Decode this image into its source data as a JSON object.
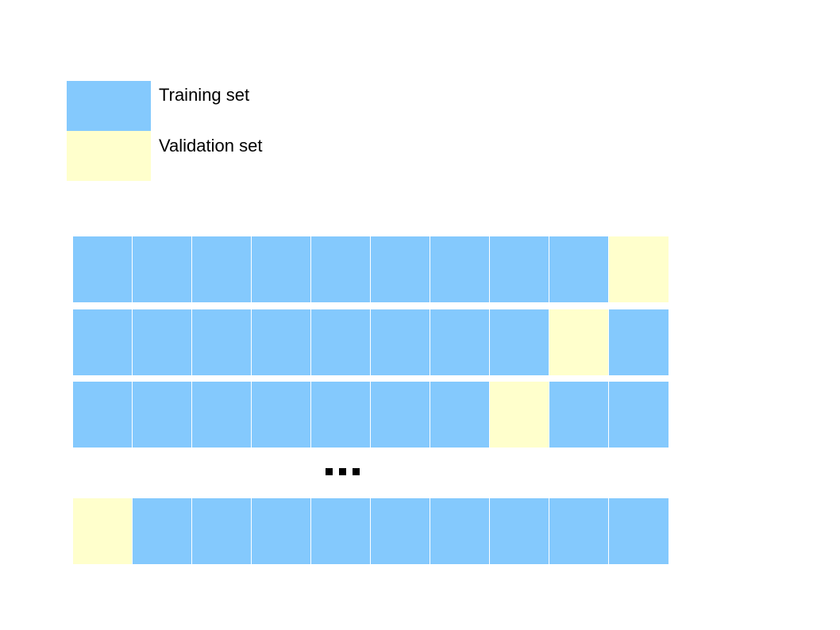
{
  "legend": {
    "training": {
      "label": "Training set",
      "color": "#84C9FD"
    },
    "validation": {
      "label": "Validation set",
      "color": "#FFFFCC"
    }
  },
  "folds": [
    {
      "cells": [
        "training",
        "training",
        "training",
        "training",
        "training",
        "training",
        "training",
        "training",
        "training",
        "validation"
      ]
    },
    {
      "cells": [
        "training",
        "training",
        "training",
        "training",
        "training",
        "training",
        "training",
        "training",
        "validation",
        "training"
      ]
    },
    {
      "cells": [
        "training",
        "training",
        "training",
        "training",
        "training",
        "training",
        "training",
        "validation",
        "training",
        "training"
      ]
    },
    {
      "cells": [
        "validation",
        "training",
        "training",
        "training",
        "training",
        "training",
        "training",
        "training",
        "training",
        "training"
      ]
    }
  ],
  "ellipsis": {
    "icon": "ellipsis-icon",
    "dots": 3
  }
}
